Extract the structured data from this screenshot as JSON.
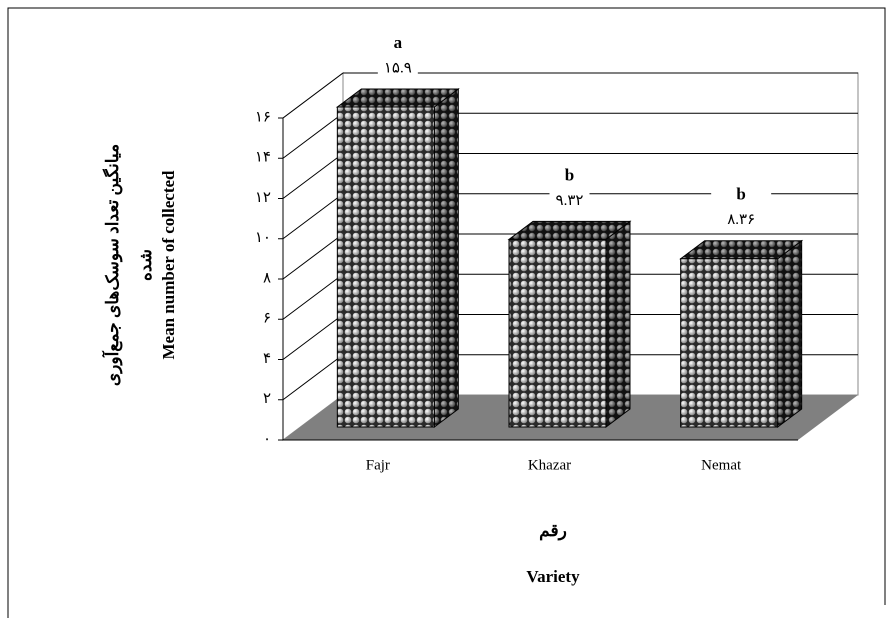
{
  "chart_data": {
    "type": "bar",
    "categories": [
      "Fajr",
      "Khazar",
      "Nemat"
    ],
    "values": [
      15.9,
      9.32,
      8.36
    ],
    "value_labels": [
      "۱۵.۹",
      "۹.۳۲",
      "۸.۳۶"
    ],
    "annotations": [
      "a",
      "b",
      "b"
    ],
    "ylim": [
      0,
      16
    ],
    "yticks": [
      {
        "value": 0,
        "label": "۰"
      },
      {
        "value": 2,
        "label": "۲"
      },
      {
        "value": 4,
        "label": "۴"
      },
      {
        "value": 6,
        "label": "۶"
      },
      {
        "value": 8,
        "label": "۸"
      },
      {
        "value": 10,
        "label": "۱۰"
      },
      {
        "value": 12,
        "label": "۱۲"
      },
      {
        "value": 14,
        "label": "۱۴"
      },
      {
        "value": 16,
        "label": "۱۶"
      }
    ],
    "y_label": [
      "میانگین تعداد سوسک‌های جمع‌آوری",
      "شده",
      "Mean number of collected"
    ],
    "x_label": [
      "رقم",
      "Variety"
    ],
    "grid": true,
    "color": "#2a2a2a"
  }
}
